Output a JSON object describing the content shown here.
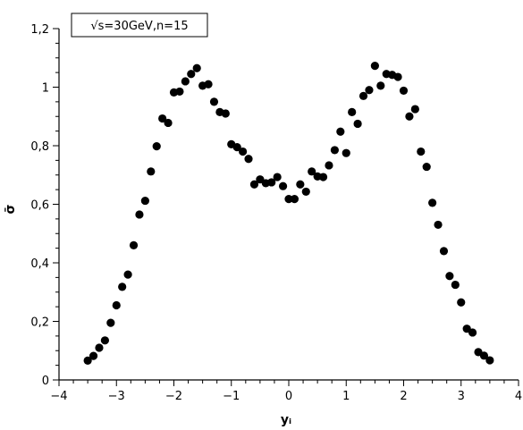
{
  "chart_data": {
    "type": "scatter",
    "title": "",
    "annotation": "√s=30GeV,n=15",
    "xlabel": "yᵢ",
    "ylabel": "σ̄",
    "xlim": [
      -4,
      4
    ],
    "ylim": [
      0,
      1.2
    ],
    "x_ticks": [
      -4,
      -3,
      -2,
      -1,
      0,
      1,
      2,
      3,
      4
    ],
    "y_ticks": [
      0,
      0.2,
      0.4,
      0.6,
      0.8,
      1,
      1.2
    ],
    "x_tick_labels": [
      "−4",
      "−3",
      "−2",
      "−1",
      "0",
      "1",
      "2",
      "3",
      "4"
    ],
    "y_tick_labels": [
      "0",
      "0,2",
      "0,4",
      "0,6",
      "0,8",
      "1",
      "1,2"
    ],
    "grid": false,
    "marker_color": "#000000",
    "series": [
      {
        "x": [
          -3.5,
          -3.4,
          -3.3,
          -3.2,
          -3.1,
          -3.0,
          -2.9,
          -2.8,
          -2.7,
          -2.6,
          -2.5,
          -2.4,
          -2.3,
          -2.2,
          -2.1,
          -2.0,
          -1.9,
          -1.8,
          -1.7,
          -1.6,
          -1.5,
          -1.4,
          -1.3,
          -1.2,
          -1.1,
          -1.0,
          -0.9,
          -0.8,
          -0.7,
          -0.6,
          -0.5,
          -0.4,
          -0.3,
          -0.2,
          -0.1,
          0.0,
          0.1,
          0.2,
          0.3,
          0.4,
          0.5,
          0.6,
          0.7,
          0.8,
          0.9,
          1.0,
          1.1,
          1.2,
          1.3,
          1.4,
          1.5,
          1.6,
          1.7,
          1.8,
          1.9,
          2.0,
          2.1,
          2.2,
          2.3,
          2.4,
          2.5,
          2.6,
          2.7,
          2.8,
          2.9,
          3.0,
          3.1,
          3.2,
          3.3,
          3.4,
          3.5
        ],
        "y": [
          0.066,
          0.082,
          0.11,
          0.135,
          0.195,
          0.255,
          0.318,
          0.36,
          0.46,
          0.565,
          0.612,
          0.712,
          0.798,
          0.893,
          0.878,
          0.982,
          0.985,
          1.02,
          1.045,
          1.065,
          1.005,
          1.01,
          0.95,
          0.915,
          0.91,
          0.805,
          0.795,
          0.78,
          0.755,
          0.668,
          0.685,
          0.672,
          0.675,
          0.693,
          0.662,
          0.618,
          0.618,
          0.668,
          0.643,
          0.712,
          0.695,
          0.693,
          0.733,
          0.785,
          0.848,
          0.775,
          0.915,
          0.875,
          0.97,
          0.99,
          1.073,
          1.005,
          1.045,
          1.042,
          1.035,
          0.988,
          0.9,
          0.925,
          0.78,
          0.728,
          0.605,
          0.53,
          0.44,
          0.355,
          0.325,
          0.265,
          0.175,
          0.162,
          0.095,
          0.083,
          0.067
        ]
      }
    ]
  }
}
